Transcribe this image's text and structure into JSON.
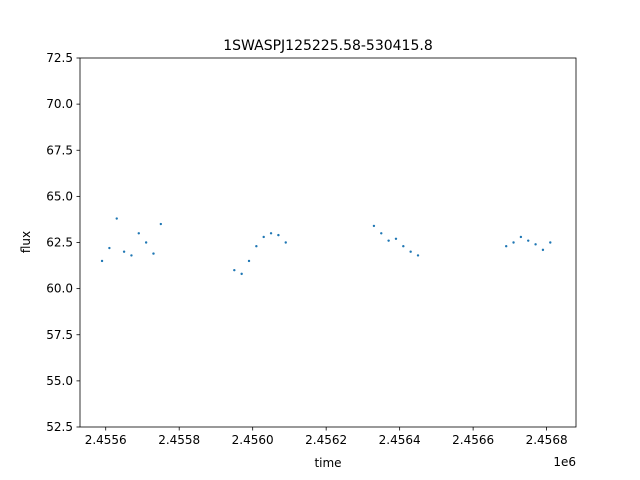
{
  "chart_data": {
    "type": "scatter",
    "title": "1SWASPJ125225.58-530415.8",
    "xlabel": "time",
    "ylabel": "flux",
    "x_offset_label": "1e6",
    "xlim": [
      2.45553,
      2.45688
    ],
    "ylim": [
      52.5,
      72.5
    ],
    "x_ticks": [
      {
        "value": 2.4556,
        "label": "2.4556"
      },
      {
        "value": 2.4558,
        "label": "2.4558"
      },
      {
        "value": 2.456,
        "label": "2.4560"
      },
      {
        "value": 2.4562,
        "label": "2.4562"
      },
      {
        "value": 2.4564,
        "label": "2.4564"
      },
      {
        "value": 2.4566,
        "label": "2.4566"
      },
      {
        "value": 2.4568,
        "label": "2.4568"
      }
    ],
    "y_ticks": [
      {
        "value": 52.5,
        "label": "52.5"
      },
      {
        "value": 55.0,
        "label": "55.0"
      },
      {
        "value": 57.5,
        "label": "57.5"
      },
      {
        "value": 60.0,
        "label": "60.0"
      },
      {
        "value": 62.5,
        "label": "62.5"
      },
      {
        "value": 65.0,
        "label": "65.0"
      },
      {
        "value": 67.5,
        "label": "67.5"
      },
      {
        "value": 70.0,
        "label": "70.0"
      },
      {
        "value": 72.5,
        "label": "72.5"
      }
    ],
    "grid": false,
    "marker_color": "#1f77b4",
    "series": [
      {
        "x": [
          2.45559,
          2.45561,
          2.45563,
          2.45565,
          2.45567,
          2.45569,
          2.45571,
          2.45573,
          2.45575,
          2.45595,
          2.45597,
          2.45599,
          2.45601,
          2.45603,
          2.45605,
          2.45607,
          2.45609,
          2.45633,
          2.45635,
          2.45637,
          2.45639,
          2.45641,
          2.45643,
          2.45645,
          2.45669,
          2.45671,
          2.45673,
          2.45675,
          2.45677,
          2.45679,
          2.45681
        ],
        "y": [
          61.5,
          62.2,
          63.8,
          62.0,
          61.8,
          63.0,
          62.5,
          61.9,
          63.5,
          61.0,
          60.8,
          61.5,
          62.3,
          62.8,
          63.0,
          62.9,
          62.5,
          63.4,
          63.0,
          62.6,
          62.7,
          62.3,
          62.0,
          61.8,
          62.3,
          62.5,
          62.8,
          62.6,
          62.4,
          62.1,
          62.5
        ]
      }
    ]
  }
}
